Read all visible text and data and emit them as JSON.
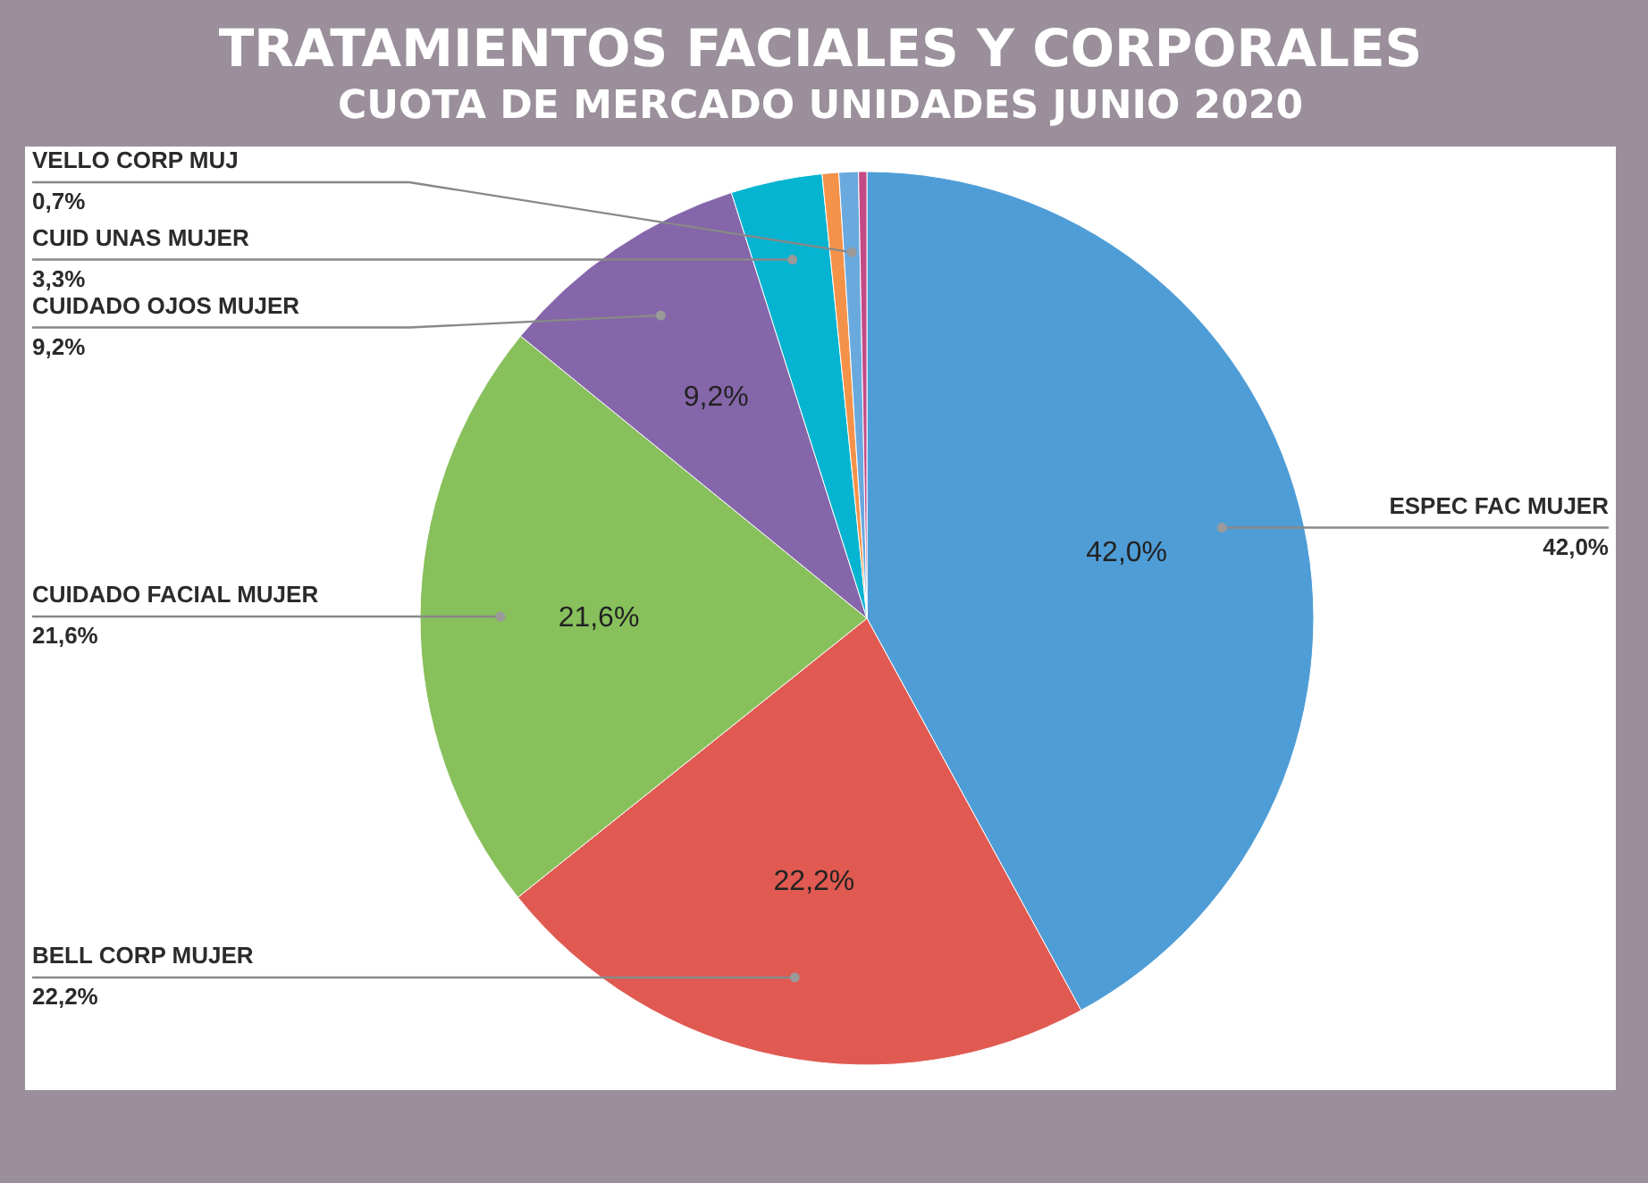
{
  "chart_data": {
    "type": "pie",
    "title": "TRATAMIENTOS FACIALES Y CORPORALES",
    "subtitle": "CUOTA DE MERCADO UNIDADES JUNIO 2020",
    "categories": [
      "ESPEC FAC MUJER",
      "BELL CORP MUJER",
      "CUIDADO FACIAL MUJER",
      "CUIDADO OJOS MUJER",
      "CUID UNAS MUJER",
      null,
      "VELLO CORP MUJ",
      null
    ],
    "values": [
      42.0,
      22.2,
      21.6,
      9.2,
      3.3,
      0.6,
      0.7,
      0.3
    ],
    "colors": [
      "#4f9dd6",
      "#e05a52",
      "#88c05c",
      "#8566aa",
      "#05b4d0",
      "#f39248",
      "#6aa9dd",
      "#c44a86"
    ],
    "value_labels": [
      "42,0%",
      "22,2%",
      "21,6%",
      "9,2%",
      "3,3%",
      null,
      "0,7%",
      null
    ]
  }
}
